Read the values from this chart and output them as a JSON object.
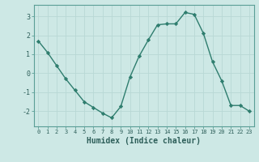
{
  "x": [
    0,
    1,
    2,
    3,
    4,
    5,
    6,
    7,
    8,
    9,
    10,
    11,
    12,
    13,
    14,
    15,
    16,
    17,
    18,
    19,
    20,
    21,
    22,
    23
  ],
  "y": [
    1.7,
    1.1,
    0.4,
    -0.3,
    -0.9,
    -1.5,
    -1.8,
    -2.1,
    -2.35,
    -1.75,
    -0.2,
    0.9,
    1.75,
    2.55,
    2.6,
    2.6,
    3.2,
    3.1,
    2.1,
    0.6,
    -0.4,
    -1.7,
    -1.7,
    -2.0
  ],
  "line_color": "#2e7d6e",
  "marker": "D",
  "marker_size": 2.2,
  "background_color": "#cde8e5",
  "grid_color": "#b8d8d5",
  "tick_label_color": "#2e5f5a",
  "xlabel": "Humidex (Indice chaleur)",
  "xlabel_fontsize": 7,
  "xlim": [
    -0.5,
    23.5
  ],
  "ylim": [
    -2.8,
    3.6
  ],
  "yticks": [
    -2,
    -1,
    0,
    1,
    2,
    3
  ],
  "xticks": [
    0,
    1,
    2,
    3,
    4,
    5,
    6,
    7,
    8,
    9,
    10,
    11,
    12,
    13,
    14,
    15,
    16,
    17,
    18,
    19,
    20,
    21,
    22,
    23
  ],
  "line_width": 1.0,
  "spine_color": "#5a9e96"
}
